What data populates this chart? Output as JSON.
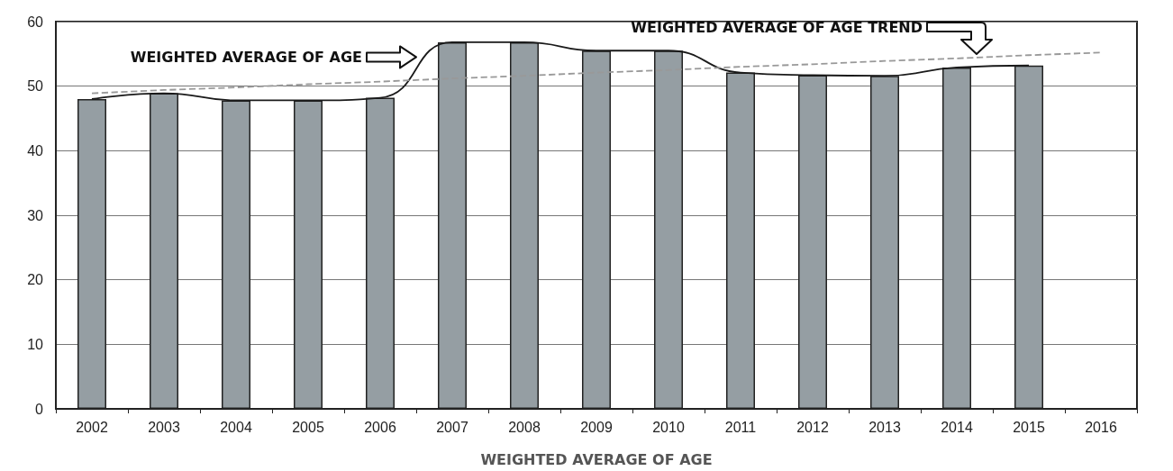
{
  "chart_data": {
    "type": "bar",
    "xlabel": "WEIGHTED AVERAGE OF AGE",
    "categories": [
      "2002",
      "2003",
      "2004",
      "2005",
      "2006",
      "2007",
      "2008",
      "2009",
      "2010",
      "2011",
      "2012",
      "2013",
      "2014",
      "2015",
      "2016"
    ],
    "series": [
      {
        "color": "#959ea3",
        "values": [
          48,
          48.9,
          47.8,
          47.8,
          48.2,
          56.8,
          56.8,
          55.5,
          55.5,
          52.1,
          51.7,
          51.6,
          52.9,
          53.2,
          null
        ]
      },
      {
        "type": "line",
        "color": "#1a1a1a",
        "line_style": "solid",
        "values": [
          48,
          48.9,
          47.8,
          47.8,
          48.2,
          56.8,
          56.8,
          55.5,
          55.5,
          52.1,
          51.7,
          51.6,
          52.9,
          53.2,
          null
        ]
      },
      {
        "type": "line",
        "color": "#999999",
        "line_style": "dashed",
        "values": [
          48.9,
          49.4,
          49.8,
          50.3,
          50.7,
          51.2,
          51.6,
          52.1,
          52.5,
          53.0,
          53.4,
          53.9,
          54.3,
          54.8,
          55.2
        ]
      }
    ],
    "ylim": [
      0,
      60
    ],
    "yticks": [
      0,
      10,
      20,
      30,
      40,
      50,
      60
    ],
    "grid": "y",
    "marker": "none",
    "annotations": [
      "WEIGHTED AVERAGE OF AGE",
      "WEIGHTED AVERAGE OF AGE TREND"
    ]
  }
}
